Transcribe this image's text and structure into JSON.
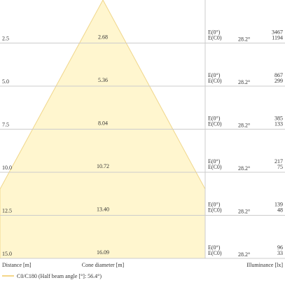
{
  "rows": [
    {
      "distance": "2.5",
      "diameter": "2.68",
      "label_a": "E(0°)",
      "label_b": "E(C0)",
      "angle": "28.2°",
      "value_a": "3467",
      "value_b": "1194"
    },
    {
      "distance": "5.0",
      "diameter": "5.36",
      "label_a": "E(0°)",
      "label_b": "E(C0)",
      "angle": "28.2°",
      "value_a": "867",
      "value_b": "299"
    },
    {
      "distance": "7.5",
      "diameter": "8.04",
      "label_a": "E(0°)",
      "label_b": "E(C0)",
      "angle": "28.2°",
      "value_a": "385",
      "value_b": "133"
    },
    {
      "distance": "10.0",
      "diameter": "10.72",
      "label_a": "E(0°)",
      "label_b": "E(C0)",
      "angle": "28.2°",
      "value_a": "217",
      "value_b": "75"
    },
    {
      "distance": "12.5",
      "diameter": "13.40",
      "label_a": "E(0°)",
      "label_b": "E(C0)",
      "angle": "28.2°",
      "value_a": "139",
      "value_b": "48"
    },
    {
      "distance": "15.0",
      "diameter": "16.09",
      "label_a": "E(0°)",
      "label_b": "E(C0)",
      "angle": "28.2°",
      "value_a": "96",
      "value_b": "33"
    }
  ],
  "footer": {
    "distance": "Distance [m]",
    "diameter": "Cone diameter [m]",
    "illuminance": "Illuminance [lx]"
  },
  "legend": "C0/C180 (Half beam angle [°]: 56.4°)"
}
